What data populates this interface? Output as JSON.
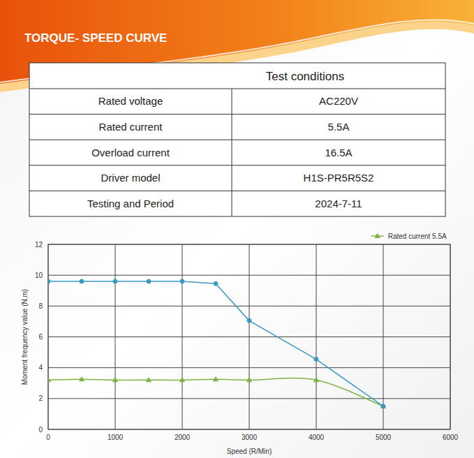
{
  "header": {
    "title": "TORQUE- SPEED CURVE"
  },
  "table": {
    "title": "Test conditions",
    "rows": [
      [
        "Rated voltage",
        "AC220V"
      ],
      [
        "Rated current",
        "5.5A"
      ],
      [
        "Overload current",
        "16.5A"
      ],
      [
        "Driver model",
        "H1S-PR5R5S2"
      ],
      [
        "Testing and Period",
        "2024-7-11"
      ]
    ]
  },
  "chart_data": {
    "type": "line",
    "x_label": "Speed (R/Min)",
    "y_label": "Moment frequency value (N.m)",
    "x": [
      0,
      500,
      1000,
      1500,
      2000,
      2500,
      3000,
      4000,
      5000
    ],
    "series": [
      {
        "color": "#3a9ac6",
        "marker": "circle",
        "line_style": "solid",
        "values": [
          9.6,
          9.6,
          9.6,
          9.6,
          9.6,
          9.45,
          7.05,
          4.55,
          1.5
        ]
      },
      {
        "name": "Rated current 5.5A",
        "color": "#7cb342",
        "marker": "triangle",
        "line_style": "smooth",
        "values": [
          3.2,
          3.25,
          3.2,
          3.2,
          3.2,
          3.25,
          3.2,
          3.2,
          1.5
        ]
      }
    ],
    "xlim": [
      0,
      6000
    ],
    "xticks": [
      0,
      1000,
      2000,
      3000,
      4000,
      5000,
      6000
    ],
    "ylim": [
      0,
      12
    ],
    "yticks": [
      0,
      2,
      4,
      6,
      8,
      10,
      12
    ],
    "grid": true,
    "legend": "top-right"
  }
}
